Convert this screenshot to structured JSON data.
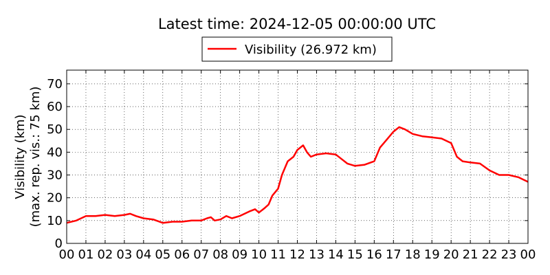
{
  "title": "Latest time: 2024-12-05 00:00:00 UTC",
  "chart_data": {
    "type": "line",
    "title": "Latest time: 2024-12-05 00:00:00 UTC",
    "xlabel": "",
    "ylabel_line1": "Visibility (km)",
    "ylabel_line2": "(max. rep. vis.: 75 km)",
    "xlim": [
      0,
      24
    ],
    "ylim": [
      0,
      76
    ],
    "grid": true,
    "legend_position": "top-center",
    "x_tick_labels": [
      "00",
      "01",
      "02",
      "03",
      "04",
      "05",
      "06",
      "07",
      "08",
      "09",
      "10",
      "11",
      "12",
      "13",
      "14",
      "15",
      "16",
      "17",
      "18",
      "19",
      "20",
      "21",
      "22",
      "23",
      "00"
    ],
    "y_ticks": [
      0,
      10,
      20,
      30,
      40,
      50,
      60,
      70
    ],
    "series": [
      {
        "name": "Visibility (26.972 km)",
        "color": "#ff0000",
        "x": [
          0,
          0.5,
          1,
          1.5,
          2,
          2.5,
          3,
          3.3,
          3.6,
          4,
          4.5,
          5,
          5.5,
          6,
          6.5,
          7,
          7.3,
          7.5,
          7.7,
          8,
          8.3,
          8.6,
          9,
          9.5,
          9.8,
          10,
          10.3,
          10.5,
          10.7,
          11,
          11.2,
          11.5,
          11.8,
          12,
          12.3,
          12.5,
          12.7,
          13,
          13.5,
          14,
          14.3,
          14.6,
          15,
          15.5,
          16,
          16.3,
          16.6,
          17,
          17.3,
          17.6,
          18,
          18.5,
          19,
          19.5,
          20,
          20.3,
          20.6,
          21,
          21.5,
          22,
          22.5,
          23,
          23.5,
          24
        ],
        "y": [
          9,
          10,
          12,
          12,
          12.5,
          12,
          12.5,
          13,
          12,
          11,
          10.5,
          9,
          9.5,
          9.5,
          10,
          10,
          11,
          11.5,
          10,
          10.5,
          12,
          11,
          12,
          14,
          15,
          13.5,
          15.5,
          17,
          21,
          24,
          30,
          36,
          38,
          41,
          43,
          40,
          38,
          39,
          39.5,
          39,
          37,
          35,
          34,
          34.5,
          36,
          42,
          45,
          49,
          51,
          50,
          48,
          47,
          46.5,
          46,
          44,
          38,
          36,
          35.5,
          35,
          32,
          30,
          30,
          29,
          27
        ]
      }
    ]
  }
}
